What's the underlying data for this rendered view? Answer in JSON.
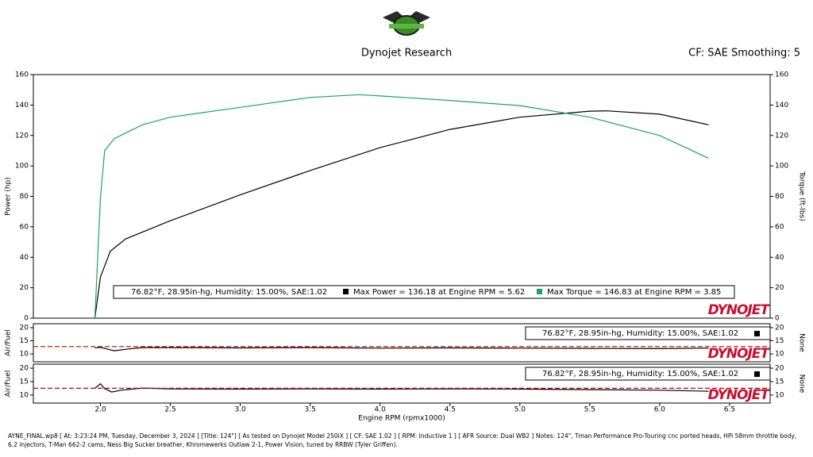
{
  "header": {
    "title": "Dynojet Research",
    "settings": "CF: SAE Smoothing: 5",
    "brand": "DYNOJET"
  },
  "chart_data": [
    {
      "type": "line",
      "ylabel": "Power (hp)",
      "y2label": "Torque (ft-lbs)",
      "xlim": [
        1.52,
        6.79
      ],
      "ylim": [
        0,
        160
      ],
      "yticks": [
        0,
        20,
        40,
        60,
        80,
        100,
        120,
        140,
        160
      ],
      "y2lim": [
        0,
        160
      ],
      "y2ticks": [
        0,
        20,
        40,
        60,
        80,
        100,
        120,
        140,
        160
      ],
      "legend_note": "76.82°F, 28.95in-hg, Humidity: 15.00%, SAE:1.02",
      "series": [
        {
          "name": "Max Power = 136.18 at Engine RPM = 5.62",
          "color": "#000000",
          "x": [
            1.96,
            2.0,
            2.07,
            2.18,
            2.5,
            3.0,
            3.5,
            4.0,
            4.5,
            5.0,
            5.5,
            5.62,
            6.0,
            6.35
          ],
          "values": [
            0,
            27,
            44,
            52,
            64,
            81,
            97,
            112,
            124,
            132,
            136,
            136.18,
            134,
            127
          ]
        },
        {
          "name": "Max Torque = 146.83 at Engine RPM = 3.85",
          "color": "#1aa55a",
          "axis": "y2",
          "x": [
            1.96,
            2.0,
            2.03,
            2.1,
            2.3,
            2.5,
            3.0,
            3.5,
            3.85,
            4.0,
            4.5,
            5.0,
            5.5,
            6.0,
            6.35
          ],
          "values": [
            0,
            79,
            110,
            118,
            127,
            132,
            138.5,
            145,
            146.83,
            146,
            143,
            139.6,
            132,
            120,
            105
          ]
        }
      ]
    },
    {
      "type": "line",
      "ylabel": "Air/Fuel",
      "y2label": "None",
      "xlim": [
        1.52,
        6.79
      ],
      "ylim": [
        7,
        21.5
      ],
      "yticks": [
        10,
        15,
        20
      ],
      "y2lim": [
        7,
        21.5
      ],
      "y2ticks": [
        10,
        15,
        20
      ],
      "series": [
        {
          "name": "76.82°F, 28.95in-hg, Humidity: 15.00%, SAE:1.02",
          "color": "#000000",
          "x": [
            1.96,
            2.0,
            2.05,
            2.1,
            2.2,
            2.3,
            2.5,
            3.0,
            3.5,
            4.0,
            4.5,
            5.0,
            5.5,
            6.0,
            6.35
          ],
          "values": [
            12.3,
            12.5,
            11.8,
            11.2,
            11.9,
            12.4,
            12.4,
            12.3,
            12.4,
            12.2,
            12.3,
            12.2,
            12.1,
            12.0,
            12.2
          ]
        },
        {
          "color": "#c00000",
          "dashed": true,
          "x": [
            1.52,
            6.79
          ],
          "values": [
            12.8,
            12.8
          ]
        }
      ]
    },
    {
      "type": "line",
      "ylabel": "Air/Fuel",
      "y2label": "None",
      "xlabel": "Engine RPM (rpmx1000)",
      "xlim": [
        1.52,
        6.79
      ],
      "ylim": [
        7,
        21.5
      ],
      "yticks": [
        10,
        15,
        20
      ],
      "y2lim": [
        7,
        21.5
      ],
      "y2ticks": [
        10,
        15,
        20
      ],
      "xticks": [
        {
          "value": 2,
          "label": "2.0"
        },
        2.5,
        {
          "value": 3,
          "label": "3.0"
        },
        3.5,
        {
          "value": 4,
          "label": "4.0"
        },
        4.5,
        {
          "value": 5,
          "label": "5.0"
        },
        5.5,
        {
          "value": 6,
          "label": "6.0"
        },
        6.5
      ],
      "series": [
        {
          "name": "76.82°F, 28.95in-hg, Humidity: 15.00%, SAE:1.02",
          "color": "#000000",
          "x": [
            1.96,
            2.0,
            2.03,
            2.08,
            2.15,
            2.3,
            2.5,
            3.0,
            3.5,
            4.0,
            4.5,
            5.0,
            5.5,
            6.0,
            6.35
          ],
          "values": [
            12.5,
            14.2,
            12.4,
            11.1,
            11.8,
            12.6,
            12.3,
            12.2,
            12.3,
            12.2,
            12.3,
            12.2,
            12.0,
            11.8,
            11.4
          ]
        },
        {
          "color": "#c00000",
          "dashed": true,
          "x": [
            1.52,
            6.79
          ],
          "values": [
            12.5,
            12.5
          ]
        }
      ]
    }
  ],
  "footer": "AYNE_FINAL.wp8 [ At: 3:23:24 PM, Tuesday, December 3, 2024 ] [Title: 124\"]  [ As tested on Dynojet Model 250iX ] [ CF: SAE 1.02 ] [ RPM: Inductive 1 ] [ AFR Source: Dual WB2 ] Notes: 124\", Tman Performance Pro-Touring cnc ported heads, HPi 58mm throttle body, 6.2 injectors, T-Man 662-2 cams, Ness Big Sucker breather, Khromewerks Outlaw 2-1, Power Vision, tuned by RRBW (Tyler Griffen)."
}
